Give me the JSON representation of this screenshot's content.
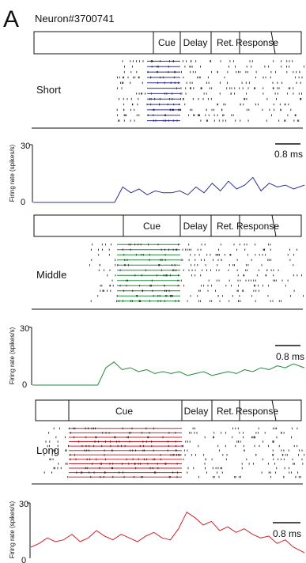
{
  "panel": {
    "letter": "A",
    "neuron": "Neuron#3700741"
  },
  "colors": {
    "short": "#2e3192",
    "middle": "#1f8a3b",
    "long": "#d2232a",
    "raster": "#222222",
    "axis": "#111111"
  },
  "epochs": {
    "cue": "Cue",
    "delay": "Delay",
    "ret": "Ret.",
    "response": "Response"
  },
  "chart_data": [
    {
      "type": "line",
      "condition": "Short",
      "ylabel": "Firing rate (spikes/s)",
      "ylim": [
        0,
        30
      ],
      "yticks": [
        0,
        30
      ],
      "scalebar": "0.8 ms",
      "x": [
        0,
        0.03,
        0.06,
        0.09,
        0.12,
        0.15,
        0.18,
        0.21,
        0.24,
        0.27,
        0.3,
        0.33,
        0.36,
        0.39,
        0.42,
        0.45,
        0.48,
        0.51,
        0.54,
        0.57,
        0.6,
        0.63,
        0.66,
        0.69,
        0.72,
        0.75,
        0.78,
        0.81,
        0.84,
        0.87,
        0.9,
        0.93,
        0.96,
        1.0
      ],
      "values": [
        0,
        0,
        0,
        0,
        0,
        0,
        0,
        0,
        0,
        0,
        0,
        8,
        5,
        7,
        4,
        6,
        5,
        5,
        6,
        4,
        8,
        5,
        10,
        6,
        11,
        7,
        9,
        13,
        6,
        10,
        8,
        9,
        7,
        9
      ]
    },
    {
      "type": "line",
      "condition": "Middle",
      "ylabel": "Firing rate (spikes/s)",
      "ylim": [
        0,
        30
      ],
      "yticks": [
        0,
        30
      ],
      "scalebar": "0.8 ms",
      "x": [
        0,
        0.03,
        0.06,
        0.09,
        0.12,
        0.15,
        0.18,
        0.21,
        0.24,
        0.27,
        0.3,
        0.33,
        0.36,
        0.39,
        0.42,
        0.45,
        0.48,
        0.51,
        0.54,
        0.57,
        0.6,
        0.63,
        0.66,
        0.69,
        0.72,
        0.75,
        0.78,
        0.81,
        0.84,
        0.87,
        0.9,
        0.93,
        0.96,
        1.0
      ],
      "values": [
        0,
        0,
        0,
        0,
        0,
        0,
        0,
        0,
        0,
        9,
        12,
        8,
        9,
        7,
        8,
        6,
        7,
        6,
        7,
        5,
        6,
        7,
        5,
        6,
        7,
        6,
        8,
        7,
        9,
        8,
        10,
        9,
        11,
        9
      ]
    },
    {
      "type": "line",
      "condition": "Long",
      "ylabel": "Firing rate (spikes/s)",
      "ylim": [
        0,
        30
      ],
      "yticks": [
        0,
        30
      ],
      "scalebar": "0.8 ms",
      "x": [
        0,
        0.03,
        0.06,
        0.09,
        0.12,
        0.15,
        0.18,
        0.21,
        0.24,
        0.27,
        0.3,
        0.33,
        0.36,
        0.39,
        0.42,
        0.45,
        0.48,
        0.51,
        0.54,
        0.57,
        0.6,
        0.63,
        0.66,
        0.69,
        0.72,
        0.75,
        0.78,
        0.81,
        0.84,
        0.87,
        0.9,
        0.93,
        0.96,
        1.0
      ],
      "values": [
        6,
        8,
        11,
        9,
        10,
        13,
        9,
        11,
        15,
        12,
        10,
        13,
        11,
        9,
        12,
        14,
        11,
        10,
        16,
        25,
        22,
        18,
        20,
        15,
        17,
        14,
        16,
        13,
        11,
        12,
        8,
        10,
        6,
        3
      ]
    }
  ]
}
